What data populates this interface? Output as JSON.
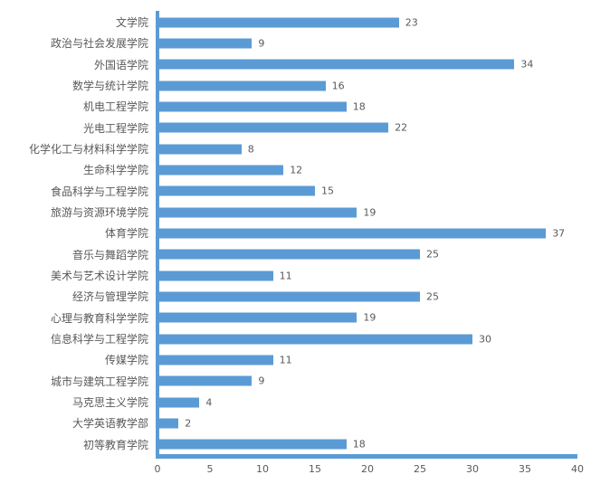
{
  "chart_data": {
    "type": "bar",
    "orientation": "horizontal",
    "title": "",
    "xlabel": "",
    "ylabel": "",
    "categories": [
      "文学院",
      "政治与社会发展学院",
      "外国语学院",
      "数学与统计学院",
      "机电工程学院",
      "光电工程学院",
      "化学化工与材料科学学院",
      "生命科学学院",
      "食品科学与工程学院",
      "旅游与资源环境学院",
      "体育学院",
      "音乐与舞蹈学院",
      "美术与艺术设计学院",
      "经济与管理学院",
      "心理与教育科学学院",
      "信息科学与工程学院",
      "传媒学院",
      "城市与建筑工程学院",
      "马克思主义学院",
      "大学英语教学部",
      "初等教育学院"
    ],
    "values": [
      23,
      9,
      34,
      16,
      18,
      22,
      8,
      12,
      15,
      19,
      37,
      25,
      11,
      25,
      19,
      30,
      11,
      9,
      4,
      2,
      18
    ],
    "xlim": [
      0,
      40
    ],
    "x_ticks": [
      0,
      5,
      10,
      15,
      20,
      25,
      30,
      35,
      40
    ],
    "grid": false,
    "legend": false,
    "data_labels": true,
    "colors": {
      "bar": "#5B9BD5",
      "axis_line": "#5B9BD5",
      "text": "#595959"
    }
  }
}
